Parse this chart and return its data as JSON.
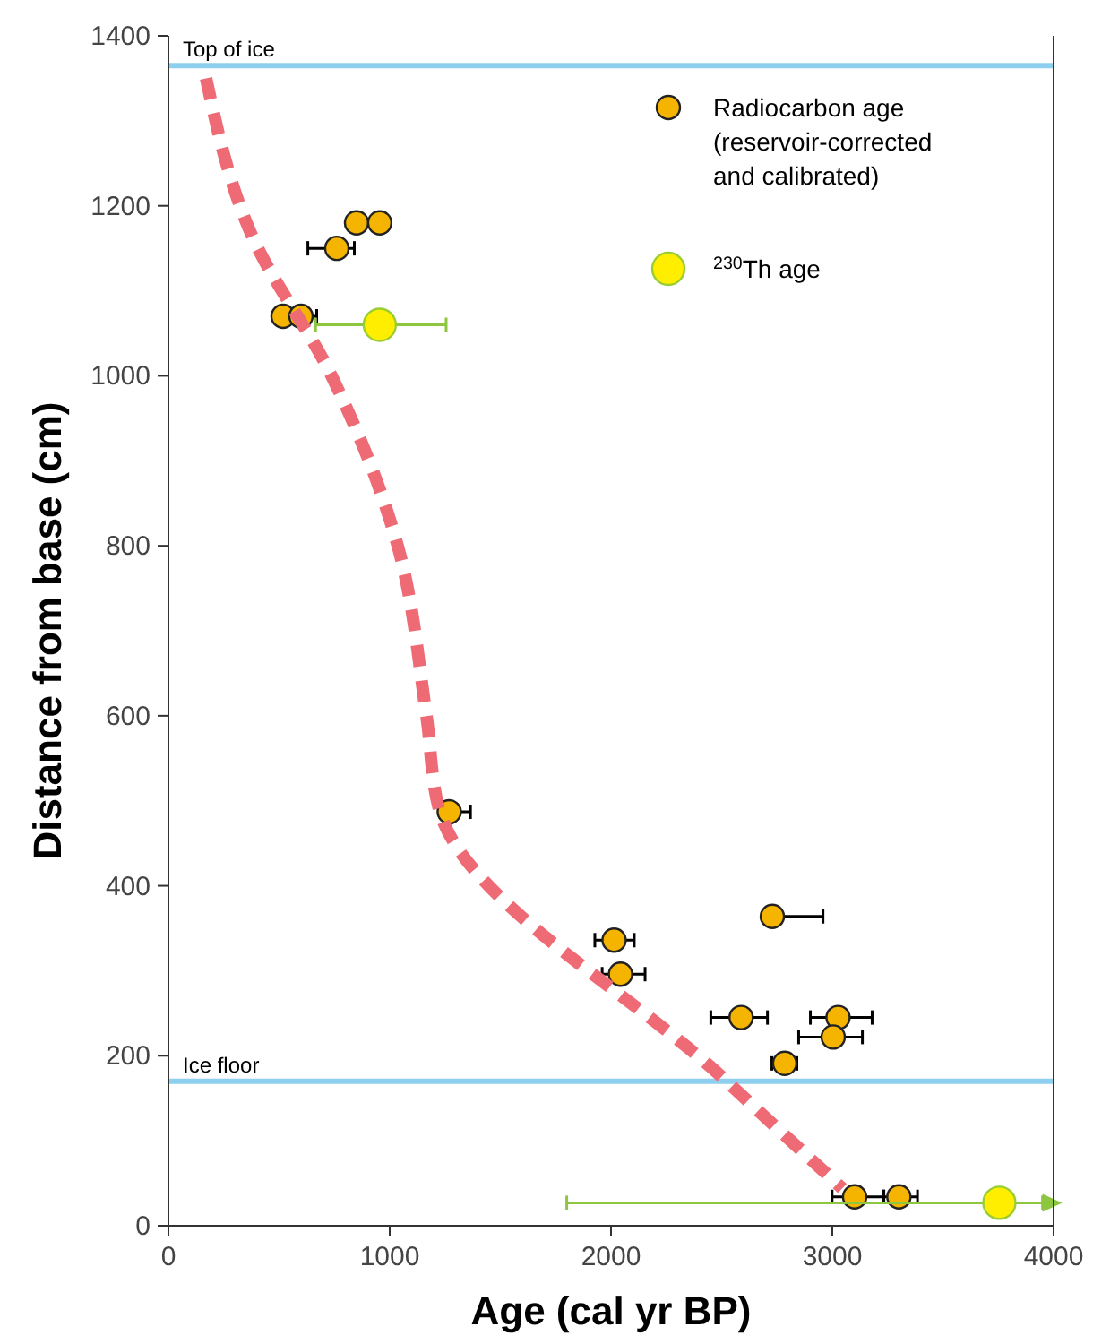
{
  "chart_data": {
    "type": "scatter",
    "xlabel": "Age (cal yr BP)",
    "ylabel": "Distance from base (cm)",
    "xlim": [
      0,
      4000
    ],
    "ylim": [
      0,
      1400
    ],
    "xticks": [
      0,
      1000,
      2000,
      3000,
      4000
    ],
    "yticks": [
      0,
      200,
      400,
      600,
      800,
      1000,
      1200,
      1400
    ],
    "grid": false,
    "legend": "top right",
    "marker": "circle",
    "series": [
      {
        "name": "Radiocarbon age (reservoir-corrected and calibrated)",
        "color": "#f5b400",
        "x": [
          850,
          955,
          761,
          518,
          599,
          1269,
          2729,
          2014,
          2043,
          2588,
          3026,
          3004,
          2785,
          3101,
          3301
        ],
        "values": [
          1180,
          1180,
          1150,
          1070,
          1070,
          487,
          364,
          336,
          296,
          245,
          245,
          222,
          191,
          34,
          34
        ],
        "xerrors": [
          null,
          null,
          [
            630,
            840
          ],
          null,
          [
            599,
            670
          ],
          [
            1230,
            1365
          ],
          [
            2729,
            2958
          ],
          [
            1927,
            2105
          ],
          [
            1960,
            2154
          ],
          [
            2451,
            2707
          ],
          [
            2901,
            3180
          ],
          [
            2848,
            3136
          ],
          [
            2727,
            2840
          ],
          [
            2999,
            3233
          ],
          [
            3233,
            3385
          ]
        ]
      },
      {
        "name": "$^{230}$Th age",
        "color": "#ffee00",
        "x": [
          955,
          3755
        ],
        "values": [
          1060,
          27
        ],
        "xerrors": [
          [
            665,
            1255
          ],
          [
            1800,
            3950
          ]
        ]
      },
      {
        "type": "line",
        "color": "#ee6a75",
        "line_style": "dashed",
        "marker": "none",
        "x": [
          170,
          372,
          737,
          1036,
          1166,
          1223,
          2518,
          3045
        ],
        "values": [
          1350,
          1168,
          1000,
          800,
          600,
          490,
          171,
          44
        ]
      }
    ],
    "ref_lines": [
      {
        "axis": "y",
        "value": 1365,
        "label": "Top of ice",
        "color": "#8ecfef"
      },
      {
        "axis": "y",
        "value": 170,
        "label": "Ice floor",
        "color": "#8ecfef"
      }
    ]
  }
}
